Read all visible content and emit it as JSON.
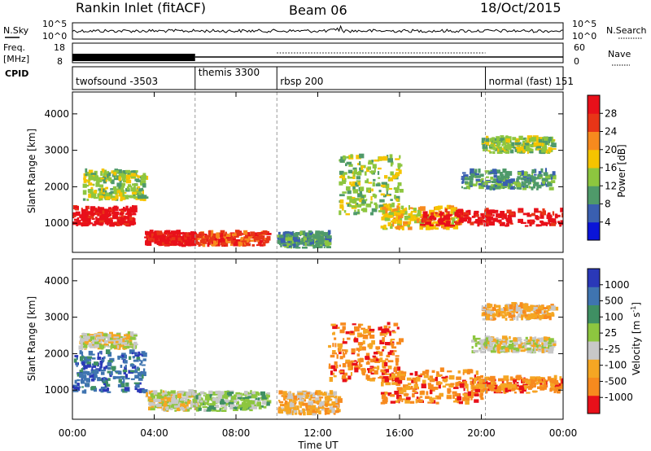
{
  "header": {
    "title": "Rankin Inlet (fitACF)",
    "beam": "Beam 06",
    "date": "18/Oct/2015"
  },
  "status_panels": {
    "nsky_label": "N.Sky",
    "nsky_ticks": [
      "10^5",
      "10^0"
    ],
    "nsearch_label": "N.Search",
    "freq_label_1": "Freq.",
    "freq_label_2": "[MHz]",
    "freq_ticks": [
      "18",
      "8"
    ],
    "nave_label": "Nave",
    "nave_ticks": [
      "60",
      "0"
    ],
    "cpid_label": "CPID",
    "cpid_blocks": [
      {
        "label": "twofsound -3503",
        "start_h": 0
      },
      {
        "label": "themis 3300",
        "start_h": 6
      },
      {
        "label": "rbsp 200",
        "start_h": 10
      },
      {
        "label": "normal (fast) 151",
        "start_h": 20.2
      }
    ]
  },
  "chart_data": [
    {
      "type": "heatmap",
      "name": "power",
      "ylabel": "Slant Range [km]",
      "ylim": [
        200,
        4600
      ],
      "yticks": [
        "1000",
        "2000",
        "3000",
        "4000"
      ],
      "colorbar_label": "Power [dB]",
      "colorbar_ticks": [
        "4",
        "8",
        "12",
        "16",
        "20",
        "24",
        "28"
      ],
      "colors": [
        "#0a14d8",
        "#3a5fb0",
        "#4f9a6a",
        "#8dc63f",
        "#f5c400",
        "#f78a1e",
        "#e83517",
        "#e8101a"
      ],
      "scatter_bands": [
        {
          "t0": 0.0,
          "t1": 3.0,
          "r0": 900,
          "r1": 1400,
          "level": 7
        },
        {
          "t0": 0.5,
          "t1": 3.5,
          "r0": 1600,
          "r1": 2400,
          "level": 3
        },
        {
          "t0": 3.5,
          "t1": 6.0,
          "r0": 350,
          "r1": 700,
          "level": 7
        },
        {
          "t0": 6.0,
          "t1": 9.5,
          "r0": 350,
          "r1": 700,
          "level": 6
        },
        {
          "t0": 10.0,
          "t1": 12.5,
          "r0": 300,
          "r1": 700,
          "level": 2
        },
        {
          "t0": 13.0,
          "t1": 16.0,
          "r0": 1200,
          "r1": 2800,
          "level": 3
        },
        {
          "t0": 15.0,
          "t1": 19.0,
          "r0": 800,
          "r1": 1400,
          "level": 4
        },
        {
          "t0": 17.0,
          "t1": 24.0,
          "r0": 900,
          "r1": 1300,
          "level": 7
        },
        {
          "t0": 19.0,
          "t1": 23.5,
          "r0": 1900,
          "r1": 2400,
          "level": 2
        },
        {
          "t0": 20.0,
          "t1": 23.5,
          "r0": 2900,
          "r1": 3300,
          "level": 3
        }
      ]
    },
    {
      "type": "heatmap",
      "name": "velocity",
      "ylabel": "Slant Range [km]",
      "ylim": [
        200,
        4600
      ],
      "yticks": [
        "1000",
        "2000",
        "3000",
        "4000"
      ],
      "colorbar_label": "Velocity [m s",
      "colorbar_label_sup": "-1",
      "colorbar_label_end": "]",
      "colorbar_ticks": [
        "1000",
        "500",
        "100",
        "25",
        "-25",
        "-100",
        "-500",
        "-1000"
      ],
      "colors": [
        "#2a38b8",
        "#3f74b0",
        "#3f8f63",
        "#8dc63f",
        "#c8c8c8",
        "#f5a623",
        "#f78a1e",
        "#e8101a"
      ],
      "scatter_bands": [
        {
          "t0": 0.0,
          "t1": 3.5,
          "r0": 900,
          "r1": 2000,
          "level": 1
        },
        {
          "t0": 0.3,
          "t1": 3.0,
          "r0": 2100,
          "r1": 2500,
          "level": 4
        },
        {
          "t0": 3.5,
          "t1": 6.0,
          "r0": 400,
          "r1": 900,
          "level": 4
        },
        {
          "t0": 6.0,
          "t1": 9.5,
          "r0": 400,
          "r1": 900,
          "level": 3
        },
        {
          "t0": 10.0,
          "t1": 13.0,
          "r0": 300,
          "r1": 900,
          "level": 5
        },
        {
          "t0": 12.5,
          "t1": 16.0,
          "r0": 1200,
          "r1": 2800,
          "level": 6
        },
        {
          "t0": 15.0,
          "t1": 20.0,
          "r0": 600,
          "r1": 1500,
          "level": 6
        },
        {
          "t0": 19.5,
          "t1": 24.0,
          "r0": 900,
          "r1": 1300,
          "level": 6
        },
        {
          "t0": 19.5,
          "t1": 23.5,
          "r0": 2000,
          "r1": 2400,
          "level": 4
        },
        {
          "t0": 20.0,
          "t1": 23.5,
          "r0": 2900,
          "r1": 3300,
          "level": 5
        }
      ]
    }
  ],
  "x_axis": {
    "ticks": [
      "00:00",
      "04:00",
      "08:00",
      "12:00",
      "16:00",
      "20:00",
      "00:00"
    ],
    "label": "Time UT",
    "range_h": [
      0,
      24
    ]
  }
}
